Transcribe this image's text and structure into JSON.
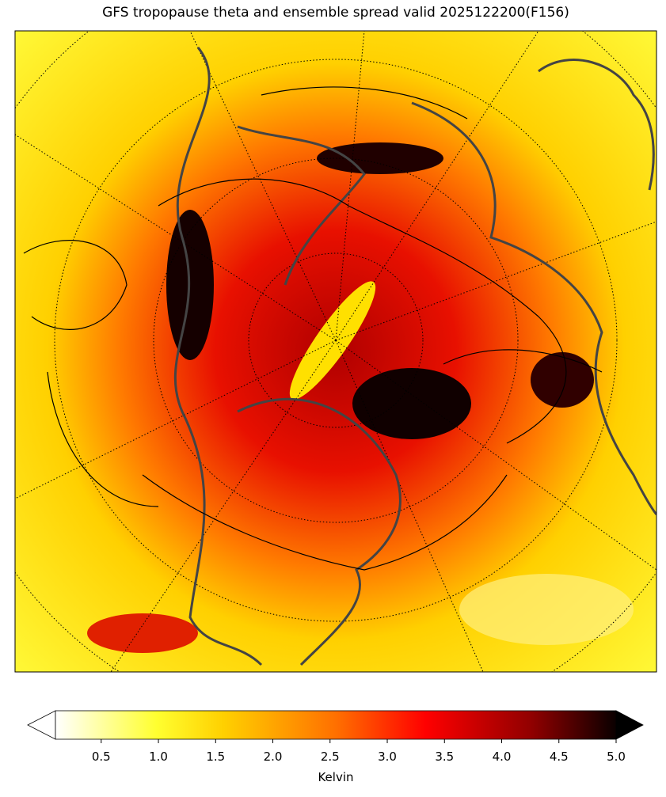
{
  "chart_data": {
    "type": "map",
    "title": "GFS tropopause theta and ensemble spread valid 2025122200(F156)",
    "colorbar": {
      "label": "Kelvin",
      "lim": [
        0.1,
        5
      ],
      "ticks": [
        0.5,
        {
          "value": 1,
          "label": "1.0"
        },
        1.5,
        {
          "value": 2,
          "label": "2.0"
        },
        2.5,
        {
          "value": 3,
          "label": "3.0"
        },
        3.5,
        {
          "value": 4,
          "label": "4.0"
        },
        4.5,
        {
          "value": 5,
          "label": "5.0"
        }
      ]
    }
  }
}
